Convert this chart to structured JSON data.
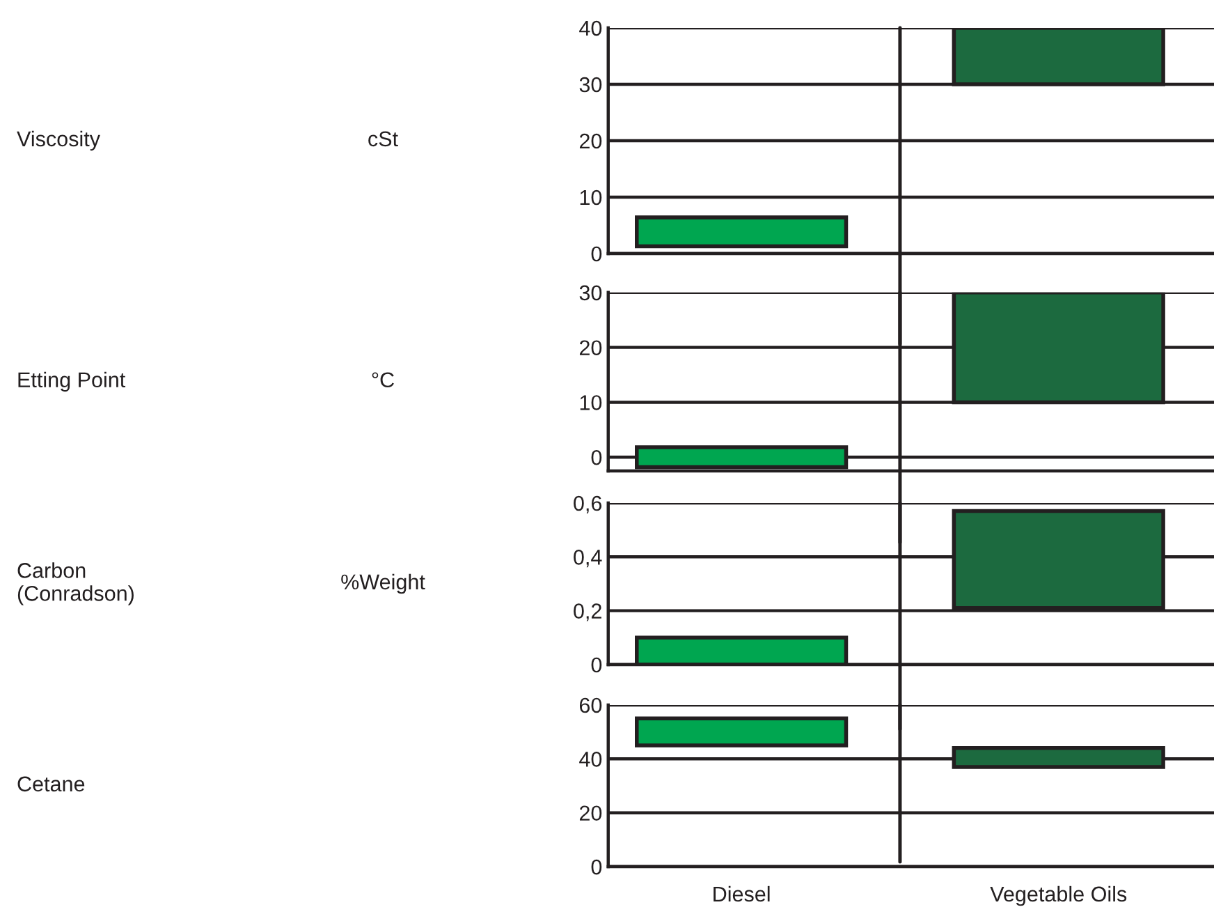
{
  "chart_data": [
    {
      "type": "bar",
      "ylabel": "Viscosity",
      "annotations": [
        "cSt"
      ],
      "categories": [
        null,
        null
      ],
      "base": [
        1.3,
        30
      ],
      "values": [
        5.1,
        10
      ],
      "colors": [
        "#00a650",
        "#1c6a3f"
      ],
      "ylim": [
        0,
        40
      ],
      "yticks": [
        0,
        10,
        20,
        30,
        40
      ],
      "grid": "y",
      "tick_labels": "y"
    },
    {
      "type": "bar",
      "ylabel": "Etting Point",
      "annotations": [
        "°C"
      ],
      "categories": [
        null,
        null
      ],
      "base": [
        -1.8,
        10
      ],
      "values": [
        3.6,
        20
      ],
      "colors": [
        "#00a650",
        "#1c6a3f"
      ],
      "ylim": [
        -2.5,
        30
      ],
      "yticks": [
        0,
        10,
        20,
        30
      ],
      "grid": "y",
      "tick_labels": "y"
    },
    {
      "type": "bar",
      "ylabel": "Carbon\n(Conradson)",
      "annotations": [
        "%Weight"
      ],
      "categories": [
        null,
        null
      ],
      "base": [
        0,
        0.21
      ],
      "values": [
        0.1,
        0.36
      ],
      "colors": [
        "#00a650",
        "#1c6a3f"
      ],
      "ylim": [
        0,
        0.6
      ],
      "yticks": [
        0,
        {
          "value": 0.2,
          "label": "0,2"
        },
        {
          "value": 0.4,
          "label": "0,4"
        },
        {
          "value": 0.6,
          "label": "0,6"
        }
      ],
      "grid": "y",
      "tick_labels": "y"
    },
    {
      "type": "bar",
      "ylabel": "Cetane",
      "categories": [
        "Diesel",
        "Vegetable Oils"
      ],
      "base": [
        45,
        37
      ],
      "values": [
        10,
        7
      ],
      "colors": [
        "#00a650",
        "#1c6a3f"
      ],
      "ylim": [
        0,
        60
      ],
      "yticks": [
        0,
        20,
        40,
        60
      ],
      "grid": "y"
    }
  ]
}
